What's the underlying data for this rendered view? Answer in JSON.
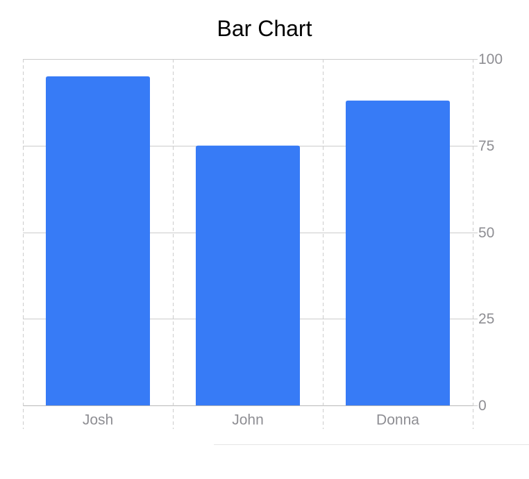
{
  "chart_data": {
    "type": "bar",
    "title": "Bar Chart",
    "categories": [
      "Josh",
      "John",
      "Donna"
    ],
    "values": [
      95,
      75,
      88
    ],
    "ylim": [
      0,
      100
    ],
    "yticks": [
      "0",
      "25",
      "50",
      "75",
      "100"
    ],
    "y_axis_position": "right",
    "grid": true,
    "bar_color": "#377BF6",
    "grid_color": "#CCCCCC",
    "tick_label_color": "#8E8E93"
  }
}
